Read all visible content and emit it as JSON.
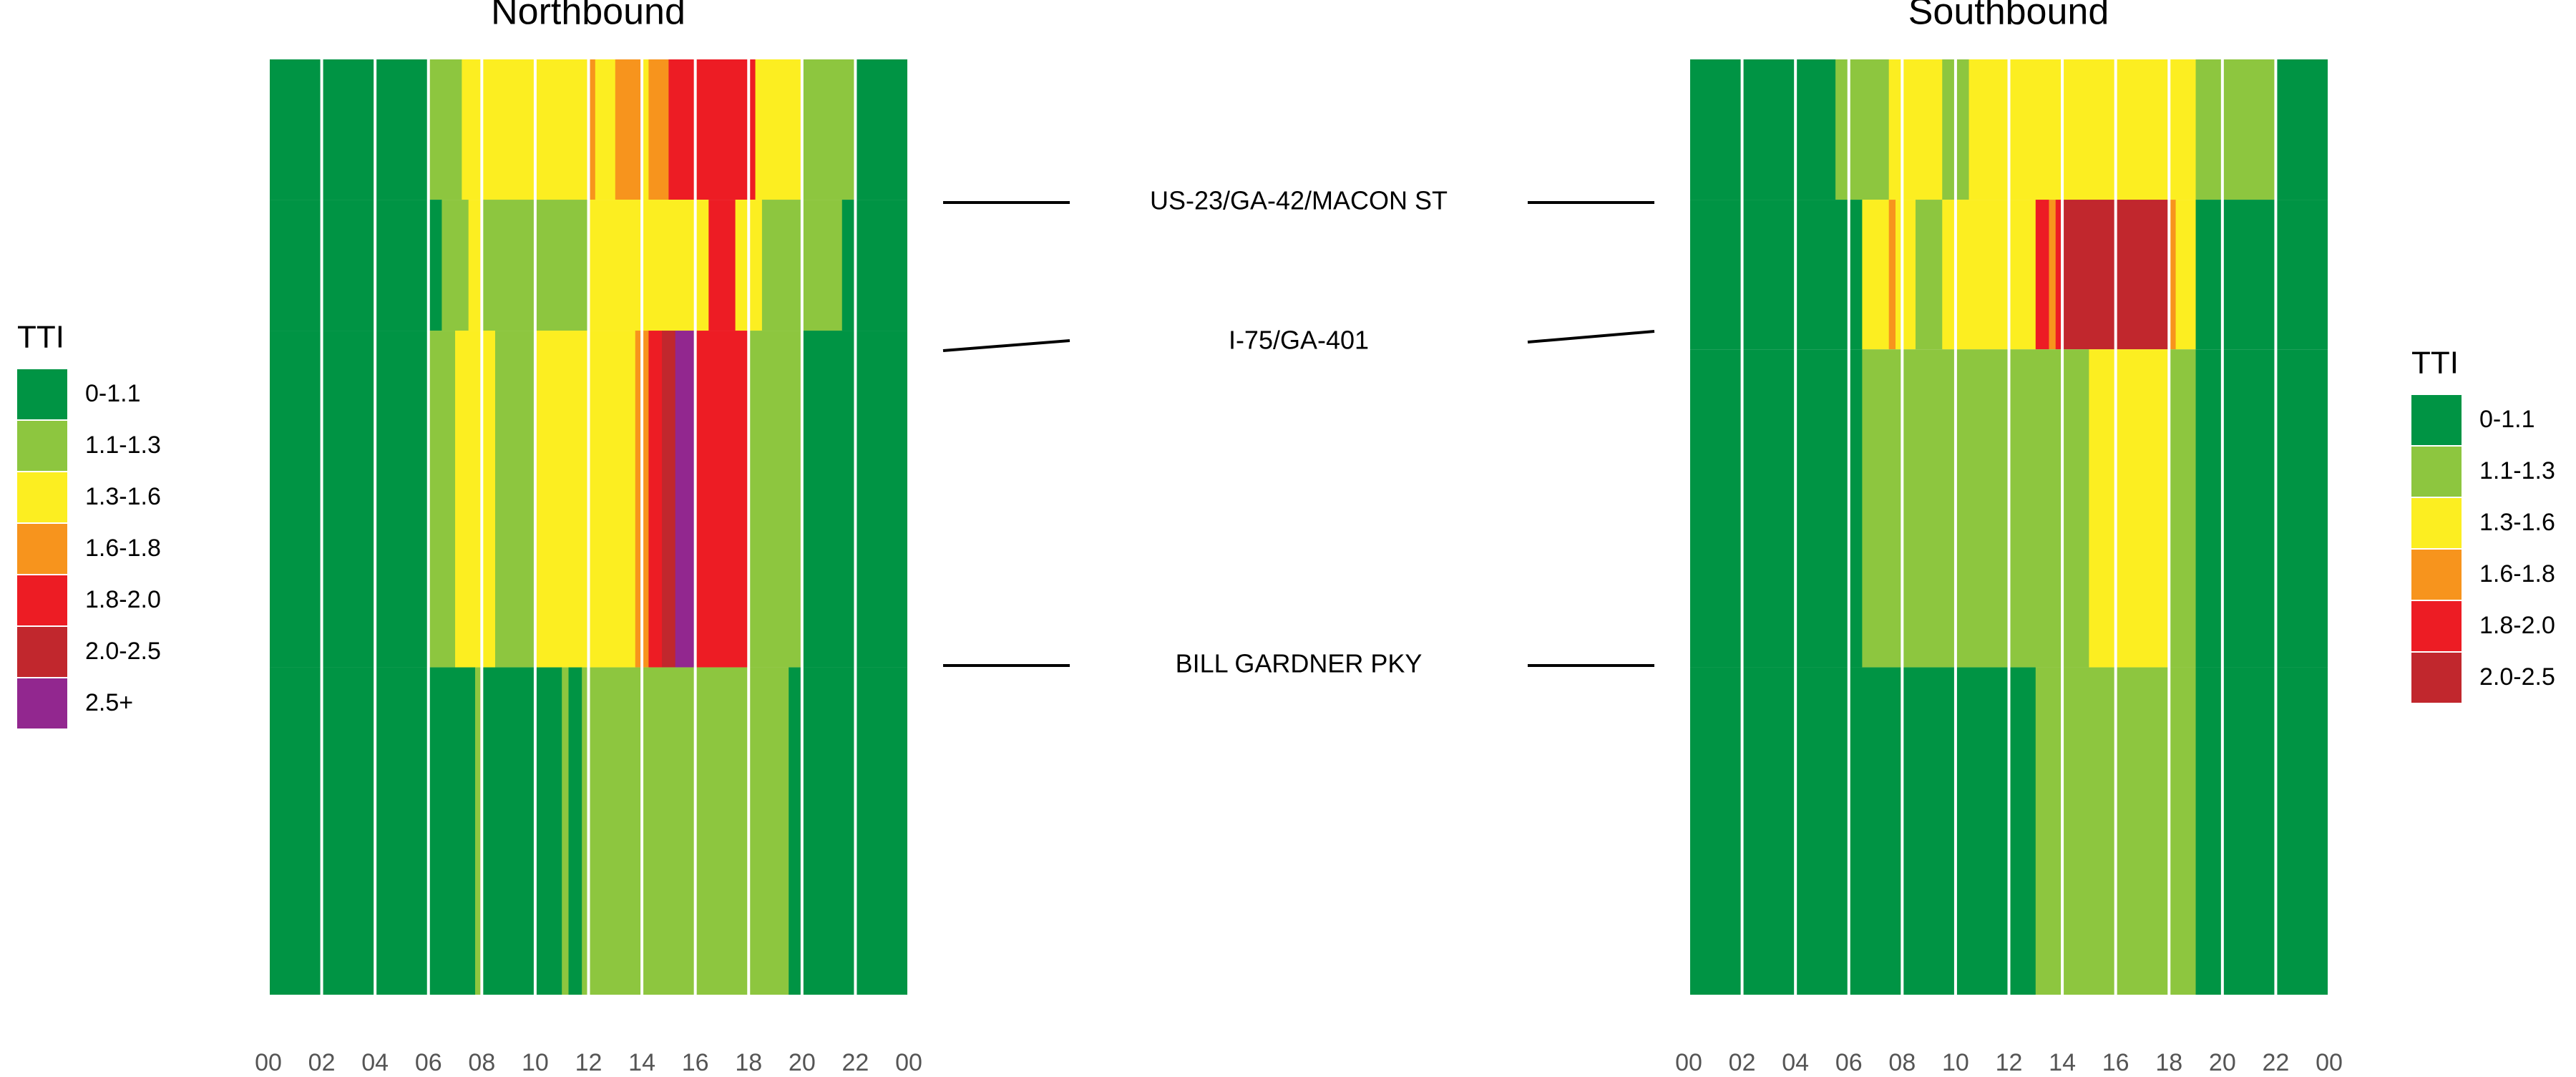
{
  "colors": {
    "0-1.1": "#009444",
    "1.1-1.3": "#8dc63f",
    "1.3-1.6": "#fcee21",
    "1.6-1.8": "#f7941d",
    "1.8-2.0": "#ed1c24",
    "2.0-2.5": "#c1272d",
    "2.5+": "#92278f"
  },
  "chart_data": [
    {
      "type": "heatmap",
      "title": "Northbound",
      "xlabel": "",
      "ylabel": "",
      "x_tick_labels": [
        "00",
        "02",
        "04",
        "06",
        "08",
        "10",
        "12",
        "14",
        "16",
        "18",
        "20",
        "22",
        "00"
      ],
      "xlim": [
        0,
        24
      ],
      "legend": {
        "title": "TTI",
        "position": "left",
        "entries": [
          "0-1.1",
          "1.1-1.3",
          "1.3-1.6",
          "1.6-1.8",
          "1.8-2.0",
          "2.0-2.5",
          "2.5+"
        ]
      },
      "segments": [
        {
          "y_start": 0.0,
          "y_end": 0.15,
          "runs": [
            [
              "0-1.1",
              0,
              6
            ],
            [
              "1.1-1.3",
              6,
              7.25
            ],
            [
              "1.3-1.6",
              7.25,
              12
            ],
            [
              "1.6-1.8",
              12,
              12.25
            ],
            [
              "1.3-1.6",
              12.25,
              13
            ],
            [
              "1.6-1.8",
              13,
              14
            ],
            [
              "1.3-1.6",
              14,
              14.25
            ],
            [
              "1.6-1.8",
              14.25,
              15
            ],
            [
              "1.8-2.0",
              15,
              18
            ],
            [
              "1.6-1.8",
              18,
              18.25
            ],
            [
              "1.8-2.0",
              18,
              18.25
            ],
            [
              "1.3-1.6",
              18.25,
              20
            ],
            [
              "1.1-1.3",
              20,
              22
            ],
            [
              "0-1.1",
              22,
              24
            ]
          ]
        },
        {
          "y_start": 0.15,
          "y_end": 0.29,
          "runs": [
            [
              "0-1.1",
              0,
              6
            ],
            [
              "0-1.1",
              6,
              6.5
            ],
            [
              "1.1-1.3",
              6.5,
              7.5
            ],
            [
              "1.3-1.6",
              7.5,
              8
            ],
            [
              "1.1-1.3",
              8,
              12
            ],
            [
              "1.3-1.6",
              12,
              16.5
            ],
            [
              "1.8-2.0",
              16.5,
              17.5
            ],
            [
              "1.3-1.6",
              17.5,
              18.5
            ],
            [
              "1.1-1.3",
              18.5,
              21.5
            ],
            [
              "0-1.1",
              21.5,
              24
            ]
          ]
        },
        {
          "y_start": 0.29,
          "y_end": 0.65,
          "runs": [
            [
              "0-1.1",
              0,
              6
            ],
            [
              "1.1-1.3",
              6,
              7
            ],
            [
              "1.3-1.6",
              7,
              8.5
            ],
            [
              "1.1-1.3",
              8.5,
              10
            ],
            [
              "1.3-1.6",
              10,
              13.75
            ],
            [
              "1.6-1.8",
              13.75,
              14.25
            ],
            [
              "1.8-2.0",
              14.25,
              14.75
            ],
            [
              "2.0-2.5",
              14.75,
              15.25
            ],
            [
              "2.5+",
              15.25,
              16
            ],
            [
              "1.8-2.0",
              16,
              18
            ],
            [
              "1.1-1.3",
              18,
              20
            ],
            [
              "0-1.1",
              20,
              24
            ]
          ]
        },
        {
          "y_start": 0.65,
          "y_end": 1.0,
          "runs": [
            [
              "0-1.1",
              0,
              7.75
            ],
            [
              "1.1-1.3",
              7.75,
              8
            ],
            [
              "0-1.1",
              8,
              11
            ],
            [
              "1.1-1.3",
              11,
              11.25
            ],
            [
              "0-1.1",
              11.25,
              11.75
            ],
            [
              "1.1-1.3",
              11.75,
              19.5
            ],
            [
              "0-1.1",
              19.5,
              24
            ]
          ]
        }
      ]
    },
    {
      "type": "heatmap",
      "title": "Southbound",
      "xlabel": "",
      "ylabel": "",
      "x_tick_labels": [
        "00",
        "02",
        "04",
        "06",
        "08",
        "10",
        "12",
        "14",
        "16",
        "18",
        "20",
        "22",
        "00"
      ],
      "xlim": [
        0,
        24
      ],
      "legend": {
        "title": "TTI",
        "position": "right",
        "entries": [
          "0-1.1",
          "1.1-1.3",
          "1.3-1.6",
          "1.6-1.8",
          "1.8-2.0",
          "2.0-2.5"
        ]
      },
      "segments": [
        {
          "y_start": 0.0,
          "y_end": 0.15,
          "runs": [
            [
              "0-1.1",
              0,
              5.5
            ],
            [
              "1.1-1.3",
              5.5,
              7.5
            ],
            [
              "1.3-1.6",
              7.5,
              9.5
            ],
            [
              "1.1-1.3",
              9.5,
              10.5
            ],
            [
              "1.3-1.6",
              10.5,
              19
            ],
            [
              "1.1-1.3",
              19,
              22
            ],
            [
              "0-1.1",
              22,
              24
            ]
          ]
        },
        {
          "y_start": 0.15,
          "y_end": 0.31,
          "runs": [
            [
              "0-1.1",
              0,
              6.5
            ],
            [
              "1.3-1.6",
              6.5,
              7.5
            ],
            [
              "1.6-1.8",
              7.5,
              7.75
            ],
            [
              "1.3-1.6",
              7.75,
              8.5
            ],
            [
              "1.1-1.3",
              8.5,
              9.5
            ],
            [
              "1.3-1.6",
              9.5,
              13
            ],
            [
              "1.8-2.0",
              13,
              13.5
            ],
            [
              "1.6-1.8",
              13.5,
              13.75
            ],
            [
              "1.8-2.0",
              13.75,
              14
            ],
            [
              "2.0-2.5",
              14,
              18
            ],
            [
              "1.6-1.8",
              18,
              18.25
            ],
            [
              "1.3-1.6",
              18.25,
              19
            ],
            [
              "0-1.1",
              19,
              24
            ]
          ]
        },
        {
          "y_start": 0.31,
          "y_end": 0.65,
          "runs": [
            [
              "0-1.1",
              0,
              6.5
            ],
            [
              "1.1-1.3",
              6.5,
              15
            ],
            [
              "1.3-1.6",
              15,
              18
            ],
            [
              "1.1-1.3",
              18,
              19
            ],
            [
              "0-1.1",
              19,
              24
            ]
          ]
        },
        {
          "y_start": 0.65,
          "y_end": 1.0,
          "runs": [
            [
              "0-1.1",
              0,
              13
            ],
            [
              "1.1-1.3",
              13,
              19
            ],
            [
              "0-1.1",
              19,
              24
            ]
          ]
        }
      ]
    }
  ],
  "location_labels": [
    "US-23/GA-42/MACON ST",
    "I-75/GA-401",
    "BILL GARDNER PKY"
  ]
}
